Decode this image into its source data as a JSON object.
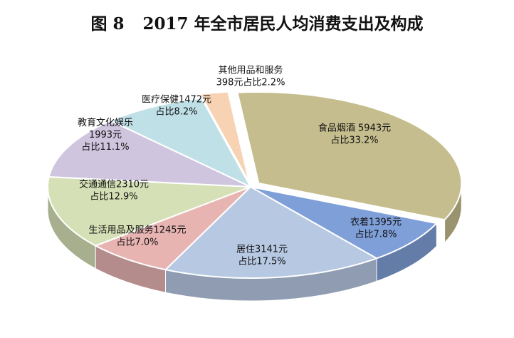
{
  "figure_number": "图 8",
  "title": "2017 年全市居民人均消费支出及构成",
  "chart_data": {
    "type": "pie",
    "title": "2017 年全市居民人均消费支出及构成",
    "unit": "元",
    "slices": [
      {
        "name": "食品烟酒",
        "value": 5943,
        "percent": 33.2,
        "color": "#c6bd8e",
        "text": [
          "食品烟酒 5943元",
          "占比33.2%"
        ]
      },
      {
        "name": "衣着",
        "value": 1395,
        "percent": 7.8,
        "color": "#7f9fd8",
        "text": [
          "衣着1395元",
          "占比7.8%"
        ]
      },
      {
        "name": "居住",
        "value": 3141,
        "percent": 17.5,
        "color": "#b7c8e3",
        "text": [
          "居住3141元",
          "占比17.5%"
        ]
      },
      {
        "name": "生活用品及服务",
        "value": 1245,
        "percent": 7.0,
        "color": "#e7b4b2",
        "text": [
          "生活用品及服务1245元",
          "占比7.0%"
        ]
      },
      {
        "name": "交通通信",
        "value": 2310,
        "percent": 12.9,
        "color": "#d6e0b6",
        "text": [
          "交通通信2310元",
          "占比12.9%"
        ]
      },
      {
        "name": "教育文化娱乐",
        "value": 1993,
        "percent": 11.1,
        "color": "#cfc5de",
        "text": [
          "教育文化娱乐",
          "1993元",
          "占比11.1%"
        ]
      },
      {
        "name": "医疗保健",
        "value": 1472,
        "percent": 8.2,
        "color": "#bfe0e6",
        "text": [
          "医疗保健1472元",
          "占比8.2%"
        ]
      },
      {
        "name": "其他用品和服务",
        "value": 398,
        "percent": 2.2,
        "color": "#f7d3b4",
        "text": [
          "其他用品和服务",
          "398元占比2.2%"
        ]
      }
    ]
  }
}
